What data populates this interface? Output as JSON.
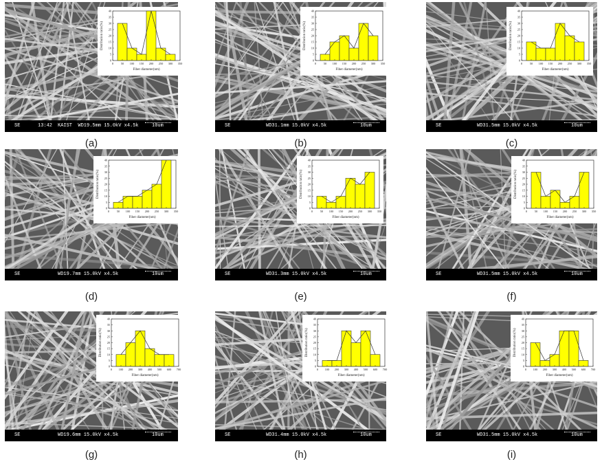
{
  "panels": [
    {
      "label": "(a)",
      "bar": {
        "left": "SE",
        "mid": "13:42",
        "right": "KAIST  WD19.5mm 15.0kV x4.5k",
        "scale": "10um"
      },
      "chart_data": {
        "type": "bar",
        "xlabel": "Fiber diameter(nm)",
        "ylabel": "Distribution ratio(%)",
        "xlim": [
          0,
          350
        ],
        "ylim": [
          0,
          40
        ],
        "xticks": [
          0,
          50,
          100,
          150,
          200,
          250,
          300,
          350
        ],
        "yticks": [
          0,
          5,
          10,
          15,
          20,
          25,
          30,
          35,
          40
        ],
        "bins": [
          [
            25,
            75
          ],
          [
            75,
            125
          ],
          [
            125,
            175
          ],
          [
            175,
            225
          ],
          [
            225,
            275
          ],
          [
            275,
            325
          ]
        ],
        "values": [
          30,
          10,
          5,
          40,
          10,
          5
        ]
      }
    },
    {
      "label": "(b)",
      "bar": {
        "left": "SE",
        "mid": "",
        "right": "WD31.1mm 15.0kV x4.5k",
        "scale": "10um"
      },
      "chart_data": {
        "type": "bar",
        "xlabel": "Fiber diameter(nm)",
        "ylabel": "Distribution ratio(%)",
        "xlim": [
          0,
          350
        ],
        "ylim": [
          0,
          40
        ],
        "xticks": [
          0,
          50,
          100,
          150,
          200,
          250,
          300,
          350
        ],
        "yticks": [
          0,
          5,
          10,
          15,
          20,
          25,
          30,
          35,
          40
        ],
        "bins": [
          [
            25,
            75
          ],
          [
            75,
            125
          ],
          [
            125,
            175
          ],
          [
            175,
            225
          ],
          [
            225,
            275
          ],
          [
            275,
            325
          ]
        ],
        "values": [
          5,
          15,
          20,
          10,
          30,
          20
        ]
      }
    },
    {
      "label": "(c)",
      "bar": {
        "left": "SE",
        "mid": "",
        "right": "WD31.5mm 15.0kV x4.5k",
        "scale": "10um"
      },
      "chart_data": {
        "type": "bar",
        "xlabel": "Fiber diameter(nm)",
        "ylabel": "Distribution ratio(%)",
        "xlim": [
          0,
          350
        ],
        "ylim": [
          0,
          40
        ],
        "xticks": [
          0,
          50,
          100,
          150,
          200,
          250,
          300,
          350
        ],
        "yticks": [
          0,
          5,
          10,
          15,
          20,
          25,
          30,
          35,
          40
        ],
        "bins": [
          [
            25,
            75
          ],
          [
            75,
            125
          ],
          [
            125,
            175
          ],
          [
            175,
            225
          ],
          [
            225,
            275
          ],
          [
            275,
            325
          ]
        ],
        "values": [
          15,
          10,
          10,
          30,
          20,
          15
        ]
      }
    },
    {
      "label": "(d)",
      "bar": {
        "left": "SE",
        "mid": "",
        "right": "WD19.7mm 15.0kV x4.5k",
        "scale": "10um"
      },
      "chart_data": {
        "type": "bar",
        "xlabel": "Fiber diameter(nm)",
        "ylabel": "Distribution ratio(%)",
        "xlim": [
          0,
          350
        ],
        "ylim": [
          0,
          40
        ],
        "xticks": [
          0,
          50,
          100,
          150,
          200,
          250,
          300,
          350
        ],
        "yticks": [
          0,
          5,
          10,
          15,
          20,
          25,
          30,
          35,
          40
        ],
        "bins": [
          [
            25,
            75
          ],
          [
            75,
            125
          ],
          [
            125,
            175
          ],
          [
            175,
            225
          ],
          [
            225,
            275
          ],
          [
            275,
            325
          ]
        ],
        "values": [
          5,
          10,
          10,
          15,
          20,
          40
        ]
      }
    },
    {
      "label": "(e)",
      "bar": {
        "left": "SE",
        "mid": "",
        "right": "WD31.3mm 15.0kV x4.5k",
        "scale": "10um"
      },
      "chart_data": {
        "type": "bar",
        "xlabel": "Fiber diameter(nm)",
        "ylabel": "Distribution ratio(%)",
        "xlim": [
          0,
          350
        ],
        "ylim": [
          0,
          40
        ],
        "xticks": [
          0,
          50,
          100,
          150,
          200,
          250,
          300,
          350
        ],
        "yticks": [
          0,
          5,
          10,
          15,
          20,
          25,
          30,
          35,
          40
        ],
        "bins": [
          [
            25,
            75
          ],
          [
            75,
            125
          ],
          [
            125,
            175
          ],
          [
            175,
            225
          ],
          [
            225,
            275
          ],
          [
            275,
            325
          ]
        ],
        "values": [
          10,
          5,
          10,
          25,
          20,
          30
        ]
      }
    },
    {
      "label": "(f)",
      "bar": {
        "left": "SE",
        "mid": "",
        "right": "WD31.5mm 15.0kV x4.5k",
        "scale": "10um"
      },
      "chart_data": {
        "type": "bar",
        "xlabel": "Fiber diameter(nm)",
        "ylabel": "Distribution ratio(%)",
        "xlim": [
          0,
          350
        ],
        "ylim": [
          0,
          40
        ],
        "xticks": [
          0,
          50,
          100,
          150,
          200,
          250,
          300,
          350
        ],
        "yticks": [
          0,
          5,
          10,
          15,
          20,
          25,
          30,
          35,
          40
        ],
        "bins": [
          [
            25,
            75
          ],
          [
            75,
            125
          ],
          [
            125,
            175
          ],
          [
            175,
            225
          ],
          [
            225,
            275
          ],
          [
            275,
            325
          ]
        ],
        "values": [
          30,
          10,
          15,
          5,
          10,
          30
        ]
      }
    },
    {
      "label": "(g)",
      "bar": {
        "left": "SE",
        "mid": "",
        "right": "WD19.6mm 15.0kV x4.5k",
        "scale": "10um"
      },
      "chart_data": {
        "type": "bar",
        "xlabel": "Fiber diameter(nm)",
        "ylabel": "Distribution ratio(%)",
        "xlim": [
          0,
          700
        ],
        "ylim": [
          0,
          40
        ],
        "xticks": [
          0,
          100,
          200,
          300,
          400,
          500,
          600,
          700
        ],
        "yticks": [
          0,
          5,
          10,
          15,
          20,
          25,
          30,
          35,
          40
        ],
        "bins": [
          [
            50,
            150
          ],
          [
            150,
            250
          ],
          [
            250,
            350
          ],
          [
            350,
            450
          ],
          [
            450,
            550
          ],
          [
            550,
            650
          ]
        ],
        "values": [
          10,
          20,
          30,
          15,
          10,
          10
        ]
      }
    },
    {
      "label": "(h)",
      "bar": {
        "left": "SE",
        "mid": "",
        "right": "WD31.4mm 15.0kV x4.5k",
        "scale": "10um"
      },
      "chart_data": {
        "type": "bar",
        "xlabel": "Fiber diameter(nm)",
        "ylabel": "Distribution ratio(%)",
        "xlim": [
          0,
          700
        ],
        "ylim": [
          0,
          40
        ],
        "xticks": [
          0,
          100,
          200,
          300,
          400,
          500,
          600,
          700
        ],
        "yticks": [
          0,
          5,
          10,
          15,
          20,
          25,
          30,
          35,
          40
        ],
        "bins": [
          [
            50,
            150
          ],
          [
            150,
            250
          ],
          [
            250,
            350
          ],
          [
            350,
            450
          ],
          [
            450,
            550
          ],
          [
            550,
            650
          ]
        ],
        "values": [
          5,
          5,
          30,
          20,
          30,
          10
        ]
      }
    },
    {
      "label": "(i)",
      "bar": {
        "left": "SE",
        "mid": "",
        "right": "WD31.5mm 15.0kV x4.5k",
        "scale": "10um"
      },
      "chart_data": {
        "type": "bar",
        "xlabel": "Fiber diameter(nm)",
        "ylabel": "Distribution ratio(%)",
        "xlim": [
          0,
          700
        ],
        "ylim": [
          0,
          40
        ],
        "xticks": [
          0,
          100,
          200,
          300,
          400,
          500,
          600,
          700
        ],
        "yticks": [
          0,
          5,
          10,
          15,
          20,
          25,
          30,
          35,
          40
        ],
        "bins": [
          [
            50,
            150
          ],
          [
            150,
            250
          ],
          [
            250,
            350
          ],
          [
            350,
            450
          ],
          [
            450,
            550
          ],
          [
            550,
            650
          ]
        ],
        "values": [
          20,
          5,
          10,
          30,
          30,
          5
        ]
      }
    }
  ],
  "colors": {
    "bar_fill": "#ffff00",
    "bar_stroke": "#333333",
    "line": "#333333",
    "sem_bg": "#5a5a5a",
    "fiber": "#d8d8d8"
  }
}
